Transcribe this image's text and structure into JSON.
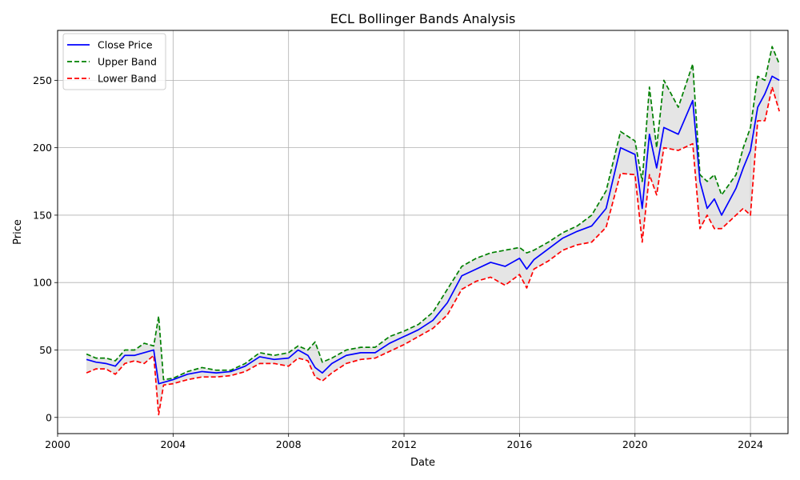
{
  "chart_data": {
    "type": "line",
    "title": "ECL Bollinger Bands Analysis",
    "xlabel": "Date",
    "ylabel": "Price",
    "xlim": [
      2000,
      2025.3
    ],
    "ylim": [
      -12,
      287
    ],
    "x_ticks": [
      2000,
      2004,
      2008,
      2012,
      2016,
      2020,
      2024
    ],
    "y_ticks": [
      0,
      50,
      100,
      150,
      200,
      250
    ],
    "grid": true,
    "legend_position": "top-left",
    "band_fill_color": "#d3d3d3",
    "x": [
      2001.0,
      2001.33,
      2001.67,
      2002.0,
      2002.33,
      2002.67,
      2003.0,
      2003.33,
      2003.5,
      2003.67,
      2004.0,
      2004.5,
      2005.0,
      2005.5,
      2006.0,
      2006.5,
      2007.0,
      2007.5,
      2008.0,
      2008.33,
      2008.67,
      2008.92,
      2009.17,
      2009.5,
      2010.0,
      2010.5,
      2011.0,
      2011.5,
      2012.0,
      2012.5,
      2013.0,
      2013.5,
      2014.0,
      2014.5,
      2015.0,
      2015.5,
      2016.0,
      2016.25,
      2016.5,
      2017.0,
      2017.5,
      2018.0,
      2018.5,
      2019.0,
      2019.5,
      2020.0,
      2020.25,
      2020.5,
      2020.75,
      2021.0,
      2021.5,
      2022.0,
      2022.25,
      2022.5,
      2022.75,
      2023.0,
      2023.5,
      2023.75,
      2024.0,
      2024.25,
      2024.5,
      2024.75,
      2025.0
    ],
    "series": [
      {
        "name": "Close Price",
        "color": "#0000ff",
        "style": "solid",
        "values": [
          43,
          41,
          40,
          38,
          46,
          46,
          48,
          50,
          25,
          26,
          28,
          32,
          34,
          33,
          34,
          38,
          45,
          43,
          44,
          50,
          46,
          37,
          33,
          40,
          46,
          48,
          48,
          55,
          60,
          65,
          72,
          85,
          105,
          110,
          115,
          112,
          118,
          110,
          117,
          125,
          133,
          138,
          142,
          155,
          200,
          195,
          155,
          210,
          185,
          215,
          210,
          235,
          175,
          155,
          162,
          150,
          170,
          185,
          198,
          230,
          240,
          253,
          250
        ]
      },
      {
        "name": "Upper Band",
        "color": "#008000",
        "style": "dashed",
        "values": [
          47,
          44,
          44,
          42,
          50,
          50,
          55,
          53,
          75,
          28,
          29,
          34,
          37,
          35,
          35,
          40,
          48,
          46,
          48,
          53,
          50,
          56,
          41,
          44,
          50,
          52,
          52,
          60,
          64,
          69,
          78,
          95,
          112,
          118,
          122,
          124,
          126,
          122,
          124,
          130,
          137,
          142,
          150,
          168,
          212,
          205,
          175,
          245,
          200,
          250,
          230,
          262,
          180,
          175,
          180,
          165,
          180,
          200,
          215,
          253,
          250,
          275,
          262
        ]
      },
      {
        "name": "Lower Band",
        "color": "#ff0000",
        "style": "dashed",
        "values": [
          33,
          36,
          36,
          32,
          40,
          42,
          40,
          46,
          2,
          24,
          25,
          28,
          30,
          30,
          31,
          34,
          40,
          40,
          38,
          44,
          42,
          30,
          27,
          33,
          40,
          43,
          44,
          49,
          54,
          60,
          66,
          76,
          95,
          101,
          104,
          98,
          106,
          96,
          110,
          116,
          124,
          128,
          130,
          141,
          181,
          180,
          130,
          180,
          165,
          200,
          198,
          203,
          140,
          150,
          140,
          140,
          150,
          155,
          150,
          220,
          220,
          245,
          227
        ]
      }
    ]
  }
}
